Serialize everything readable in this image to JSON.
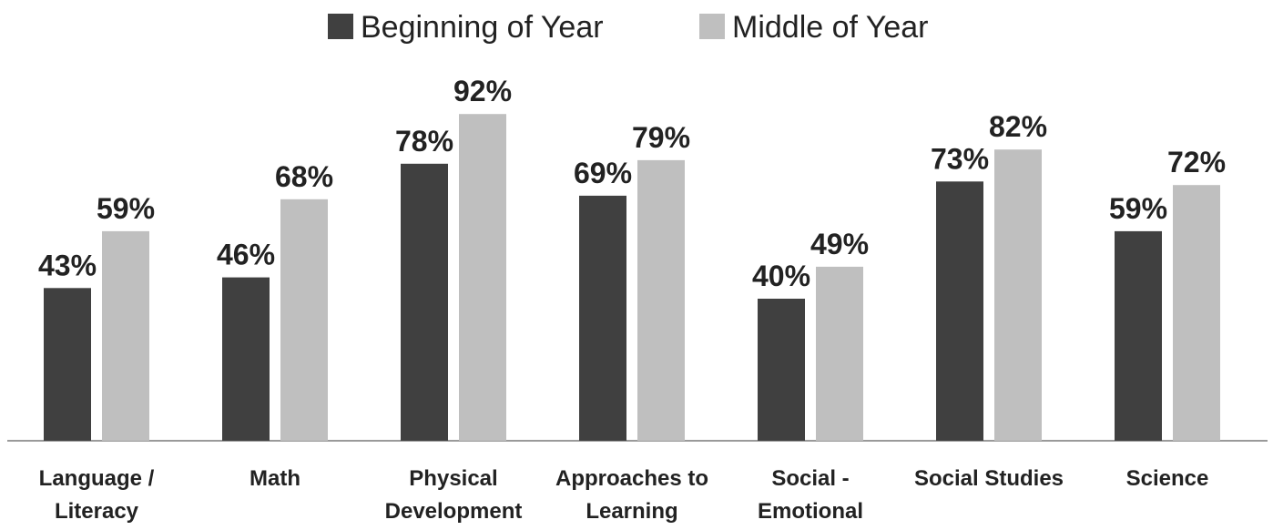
{
  "chart_data": {
    "type": "bar",
    "categories": [
      "Language /\nLiteracy",
      "Math",
      "Physical\nDevelopment",
      "Approaches to\nLearning",
      "Social -\nEmotional",
      "Social Studies",
      "Science"
    ],
    "series": [
      {
        "name": "Beginning of Year",
        "color": "#404040",
        "values": [
          43,
          46,
          78,
          69,
          40,
          73,
          59
        ],
        "value_labels": [
          "43%",
          "46%",
          "78%",
          "69%",
          "40%",
          "73%",
          "59%"
        ]
      },
      {
        "name": "Middle of Year",
        "color": "#bfbfbf",
        "values": [
          59,
          68,
          92,
          79,
          49,
          82,
          72
        ],
        "value_labels": [
          "59%",
          "68%",
          "92%",
          "79%",
          "49%",
          "82%",
          "72%"
        ]
      }
    ],
    "legend": "top"
  }
}
